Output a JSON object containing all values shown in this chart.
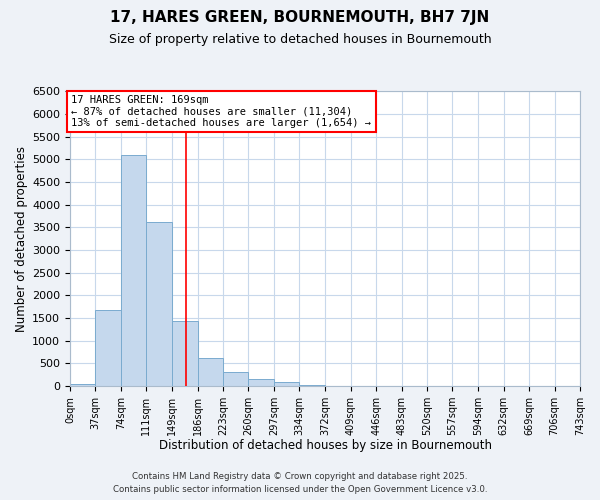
{
  "title": "17, HARES GREEN, BOURNEMOUTH, BH7 7JN",
  "subtitle": "Size of property relative to detached houses in Bournemouth",
  "xlabel": "Distribution of detached houses by size in Bournemouth",
  "ylabel": "Number of detached properties",
  "bar_values": [
    50,
    1670,
    5110,
    3630,
    1440,
    620,
    320,
    150,
    90,
    30,
    5,
    2,
    1,
    0,
    0,
    0,
    0,
    0,
    0,
    0
  ],
  "bin_edges": [
    0,
    37,
    74,
    111,
    149,
    186,
    223,
    260,
    297,
    334,
    372,
    409,
    446,
    483,
    520,
    557,
    594,
    632,
    669,
    706,
    743
  ],
  "tick_labels": [
    "0sqm",
    "37sqm",
    "74sqm",
    "111sqm",
    "149sqm",
    "186sqm",
    "223sqm",
    "260sqm",
    "297sqm",
    "334sqm",
    "372sqm",
    "409sqm",
    "446sqm",
    "483sqm",
    "520sqm",
    "557sqm",
    "594sqm",
    "632sqm",
    "669sqm",
    "706sqm",
    "743sqm"
  ],
  "bar_color": "#c5d8ed",
  "bar_edge_color": "#7aabcf",
  "vertical_line_x": 169,
  "vertical_line_color": "red",
  "ylim": [
    0,
    6500
  ],
  "yticks": [
    0,
    500,
    1000,
    1500,
    2000,
    2500,
    3000,
    3500,
    4000,
    4500,
    5000,
    5500,
    6000,
    6500
  ],
  "annotation_title": "17 HARES GREEN: 169sqm",
  "annotation_line1": "← 87% of detached houses are smaller (11,304)",
  "annotation_line2": "13% of semi-detached houses are larger (1,654) →",
  "footer1": "Contains HM Land Registry data © Crown copyright and database right 2025.",
  "footer2": "Contains public sector information licensed under the Open Government Licence v3.0.",
  "bg_color": "#eef2f7",
  "plot_bg_color": "#ffffff",
  "grid_color": "#c8d8eb"
}
